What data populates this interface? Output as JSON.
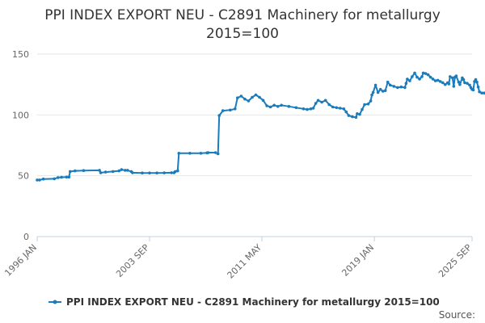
{
  "colors": {
    "series": "#1a7cbd",
    "grid": "#e6e6e6",
    "axis": "#c0d0e0"
  },
  "source": "Source:",
  "chart_data": {
    "type": "line",
    "title": "PPI INDEX EXPORT NEU - C2891 Machinery for metallurgy",
    "subtitle": "2015=100",
    "xlabel": "",
    "ylabel": "",
    "ylim": [
      0,
      150
    ],
    "yticks": [
      0,
      50,
      100,
      150
    ],
    "xlim": [
      "1996-01",
      "2025-09"
    ],
    "xtick_labels": [
      "1996 JAN",
      "2003 SEP",
      "2011 MAY",
      "2019 JAN",
      "2025 SEP"
    ],
    "grid": true,
    "legend": "bottom-center",
    "series": [
      {
        "name": "PPI INDEX EXPORT NEU - C2891 Machinery for metallurgy 2015=100",
        "points": [
          [
            "1996-01",
            46.5
          ],
          [
            "1996-03",
            46.5
          ],
          [
            "1996-06",
            47.3
          ],
          [
            "1997-03",
            47.5
          ],
          [
            "1997-06",
            48.5
          ],
          [
            "1997-09",
            48.8
          ],
          [
            "1998-01",
            48.9
          ],
          [
            "1998-03",
            49.0
          ],
          [
            "1998-04",
            53.5
          ],
          [
            "1998-08",
            54.0
          ],
          [
            "1999-03",
            54.3
          ],
          [
            "2000-04",
            54.5
          ],
          [
            "2000-05",
            52.5
          ],
          [
            "2000-09",
            53.0
          ],
          [
            "2001-03",
            53.5
          ],
          [
            "2001-08",
            54.0
          ],
          [
            "2001-10",
            55.0
          ],
          [
            "2002-01",
            54.5
          ],
          [
            "2002-03",
            54.5
          ],
          [
            "2002-06",
            53.5
          ],
          [
            "2002-07",
            52.5
          ],
          [
            "2003-03",
            52.3
          ],
          [
            "2003-09",
            52.3
          ],
          [
            "2004-03",
            52.3
          ],
          [
            "2004-09",
            52.4
          ],
          [
            "2005-03",
            52.5
          ],
          [
            "2005-05",
            52.5
          ],
          [
            "2005-06",
            53.5
          ],
          [
            "2005-08",
            54.0
          ],
          [
            "2005-09",
            68.5
          ],
          [
            "2006-06",
            68.5
          ],
          [
            "2007-03",
            68.5
          ],
          [
            "2007-08",
            68.8
          ],
          [
            "2007-09",
            69.0
          ],
          [
            "2008-03",
            69.0
          ],
          [
            "2008-05",
            68.0
          ],
          [
            "2008-06",
            99.5
          ],
          [
            "2008-09",
            103.5
          ],
          [
            "2009-03",
            104.0
          ],
          [
            "2009-07",
            105.0
          ],
          [
            "2009-09",
            114.0
          ],
          [
            "2009-12",
            115.5
          ],
          [
            "2010-03",
            113.0
          ],
          [
            "2010-06",
            111.5
          ],
          [
            "2010-09",
            114.5
          ],
          [
            "2010-12",
            116.5
          ],
          [
            "2011-03",
            114.5
          ],
          [
            "2011-06",
            112.0
          ],
          [
            "2011-09",
            107.5
          ],
          [
            "2011-12",
            106.5
          ],
          [
            "2012-03",
            108.0
          ],
          [
            "2012-06",
            107.0
          ],
          [
            "2012-09",
            108.0
          ],
          [
            "2013-03",
            107.0
          ],
          [
            "2013-09",
            106.0
          ],
          [
            "2014-03",
            105.0
          ],
          [
            "2014-06",
            104.5
          ],
          [
            "2014-09",
            105.0
          ],
          [
            "2014-11",
            105.5
          ],
          [
            "2015-01",
            109.5
          ],
          [
            "2015-03",
            112.0
          ],
          [
            "2015-06",
            110.5
          ],
          [
            "2015-09",
            112.0
          ],
          [
            "2015-12",
            108.5
          ],
          [
            "2016-03",
            106.5
          ],
          [
            "2016-06",
            106.0
          ],
          [
            "2016-09",
            105.5
          ],
          [
            "2016-12",
            105.0
          ],
          [
            "2017-02",
            102.5
          ],
          [
            "2017-04",
            99.5
          ],
          [
            "2017-07",
            98.5
          ],
          [
            "2017-10",
            98.0
          ],
          [
            "2017-11",
            101.0
          ],
          [
            "2018-01",
            100.5
          ],
          [
            "2018-03",
            104.5
          ],
          [
            "2018-05",
            108.5
          ],
          [
            "2018-08",
            109.0
          ],
          [
            "2018-10",
            111.5
          ],
          [
            "2018-11",
            116.5
          ],
          [
            "2018-12",
            118.5
          ],
          [
            "2019-02",
            124.5
          ],
          [
            "2019-04",
            118.5
          ],
          [
            "2019-06",
            121.0
          ],
          [
            "2019-08",
            119.5
          ],
          [
            "2019-10",
            120.0
          ],
          [
            "2019-12",
            127.0
          ],
          [
            "2020-02",
            124.5
          ],
          [
            "2020-05",
            123.5
          ],
          [
            "2020-08",
            122.5
          ],
          [
            "2020-11",
            123.0
          ],
          [
            "2021-02",
            122.5
          ],
          [
            "2021-03",
            126.0
          ],
          [
            "2021-04",
            129.5
          ],
          [
            "2021-06",
            128.0
          ],
          [
            "2021-08",
            131.5
          ],
          [
            "2021-10",
            134.5
          ],
          [
            "2021-12",
            131.0
          ],
          [
            "2022-02",
            129.5
          ],
          [
            "2022-04",
            131.5
          ],
          [
            "2022-05",
            134.5
          ],
          [
            "2022-07",
            134.0
          ],
          [
            "2022-09",
            133.0
          ],
          [
            "2022-11",
            131.0
          ],
          [
            "2023-01",
            129.5
          ],
          [
            "2023-03",
            128.0
          ],
          [
            "2023-05",
            128.5
          ],
          [
            "2023-07",
            127.5
          ],
          [
            "2023-09",
            126.5
          ],
          [
            "2023-11",
            125.0
          ],
          [
            "2024-01",
            126.5
          ],
          [
            "2024-02",
            125.5
          ],
          [
            "2024-03",
            131.5
          ],
          [
            "2024-05",
            130.5
          ],
          [
            "2024-06",
            123.5
          ],
          [
            "2024-07",
            131.0
          ],
          [
            "2024-08",
            132.0
          ],
          [
            "2024-10",
            127.0
          ],
          [
            "2024-11",
            125.0
          ],
          [
            "2025-01",
            130.5
          ],
          [
            "2025-02",
            129.0
          ],
          [
            "2025-03",
            126.5
          ],
          [
            "2025-05",
            126.0
          ],
          [
            "2025-07",
            124.5
          ],
          [
            "2025-08",
            122.5
          ],
          [
            "2025-09",
            121.0
          ],
          [
            "2025-10",
            120.5
          ],
          [
            "2025-11",
            127.5
          ],
          [
            "2025-12",
            129.0
          ],
          [
            "2026-01",
            127.0
          ],
          [
            "2026-02",
            123.0
          ],
          [
            "2026-03",
            119.0
          ],
          [
            "2026-05",
            118.0
          ],
          [
            "2026-07",
            118.0
          ]
        ]
      }
    ]
  }
}
